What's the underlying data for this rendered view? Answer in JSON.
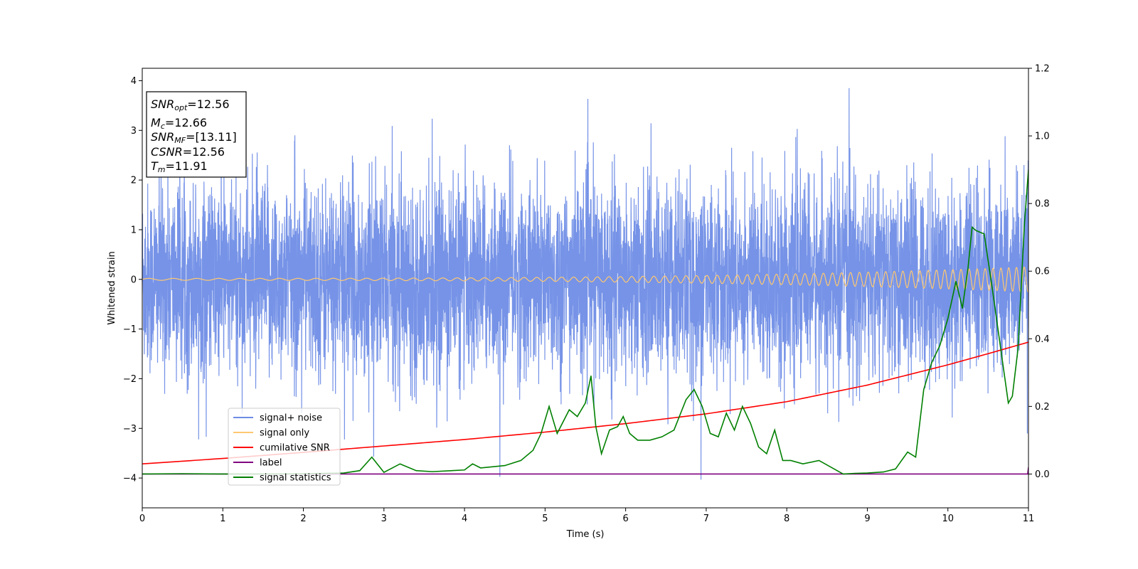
{
  "chart_data": {
    "type": "line",
    "xlabel": "Time (s)",
    "ylabel": "Whitened strain",
    "xlim": [
      0,
      11
    ],
    "ylim": [
      -4.6,
      4.25
    ],
    "y2lim": [
      -0.1,
      1.2
    ],
    "xticks": [
      "0",
      "1",
      "2",
      "3",
      "4",
      "5",
      "6",
      "7",
      "8",
      "9",
      "10",
      "11"
    ],
    "yticks": [
      "4",
      "3",
      "2",
      "1",
      "0",
      "−1",
      "−2",
      "−3",
      "−4"
    ],
    "y2ticks": [
      "1.2",
      "1.0",
      "0.8",
      "0.6",
      "0.4",
      "0.2",
      "0.0"
    ],
    "info_box": [
      {
        "main": "SNR",
        "sub": "opt",
        "value": "=12.56"
      },
      {
        "main": "M",
        "sub": "c",
        "value": "=12.66"
      },
      {
        "main": "SNR",
        "sub": "MF",
        "value": "=[13.11]"
      },
      {
        "main": "CSNR",
        "sub": "",
        "value": "=12.56"
      },
      {
        "main": "T",
        "sub": "m",
        "value": "=11.91"
      }
    ],
    "legend": [
      {
        "label": "signal+ noise",
        "color": "#6f8de6"
      },
      {
        "label": "signal only",
        "color": "#ffc870"
      },
      {
        "label": "cumilative SNR",
        "color": "#ff0000"
      },
      {
        "label": "label",
        "color": "#800080"
      },
      {
        "label": "signal statistics",
        "color": "#008000"
      }
    ],
    "series": [
      {
        "name": "signal+ noise",
        "axis": "left",
        "color": "#6f8de6",
        "kind": "noise",
        "typical_range": [
          -2.0,
          2.0
        ],
        "max_peak": 3.85,
        "min_peak": -4.15
      },
      {
        "name": "signal only",
        "axis": "left",
        "color": "#ffc870",
        "kind": "chirp",
        "amplitude_start": 0.02,
        "amplitude_end": 0.25
      },
      {
        "name": "cumilative SNR",
        "axis": "right",
        "color": "#ff0000",
        "x": [
          0,
          1,
          2,
          3,
          4,
          5,
          6,
          7,
          8,
          9,
          10,
          10.5,
          11
        ],
        "values": [
          0.03,
          0.046,
          0.064,
          0.083,
          0.102,
          0.124,
          0.149,
          0.178,
          0.214,
          0.263,
          0.323,
          0.356,
          0.39
        ]
      },
      {
        "name": "label",
        "axis": "right",
        "color": "#800080",
        "x": [
          0,
          10.99,
          11
        ],
        "values": [
          0.0,
          0.0,
          0.02
        ]
      },
      {
        "name": "signal statistics",
        "axis": "right",
        "color": "#008000",
        "x": [
          0,
          0.5,
          1,
          1.5,
          2,
          2.5,
          2.7,
          2.85,
          3.0,
          3.2,
          3.4,
          3.6,
          4.0,
          4.1,
          4.2,
          4.5,
          4.7,
          4.85,
          4.95,
          5.05,
          5.15,
          5.3,
          5.4,
          5.5,
          5.57,
          5.63,
          5.7,
          5.8,
          5.9,
          5.97,
          6.05,
          6.15,
          6.3,
          6.45,
          6.6,
          6.75,
          6.85,
          6.95,
          7.05,
          7.15,
          7.25,
          7.35,
          7.45,
          7.55,
          7.65,
          7.75,
          7.85,
          7.95,
          8.05,
          8.2,
          8.4,
          8.55,
          8.7,
          8.85,
          9.0,
          9.2,
          9.35,
          9.5,
          9.6,
          9.7,
          9.8,
          9.9,
          10.0,
          10.1,
          10.18,
          10.25,
          10.3,
          10.35,
          10.45,
          10.55,
          10.65,
          10.75,
          10.8,
          10.87,
          10.95,
          11.0
        ],
        "values": [
          0.0,
          0.001,
          0.0,
          0.0,
          0.001,
          0.003,
          0.01,
          0.05,
          0.005,
          0.03,
          0.01,
          0.007,
          0.012,
          0.03,
          0.018,
          0.025,
          0.04,
          0.07,
          0.12,
          0.2,
          0.12,
          0.19,
          0.17,
          0.21,
          0.29,
          0.14,
          0.06,
          0.13,
          0.14,
          0.17,
          0.12,
          0.1,
          0.1,
          0.11,
          0.13,
          0.22,
          0.25,
          0.2,
          0.12,
          0.11,
          0.18,
          0.13,
          0.2,
          0.15,
          0.08,
          0.06,
          0.13,
          0.04,
          0.04,
          0.03,
          0.04,
          0.02,
          0.0,
          0.002,
          0.003,
          0.006,
          0.015,
          0.065,
          0.05,
          0.25,
          0.33,
          0.38,
          0.46,
          0.57,
          0.49,
          0.61,
          0.73,
          0.72,
          0.71,
          0.55,
          0.38,
          0.21,
          0.23,
          0.37,
          0.74,
          0.9
        ]
      }
    ]
  }
}
